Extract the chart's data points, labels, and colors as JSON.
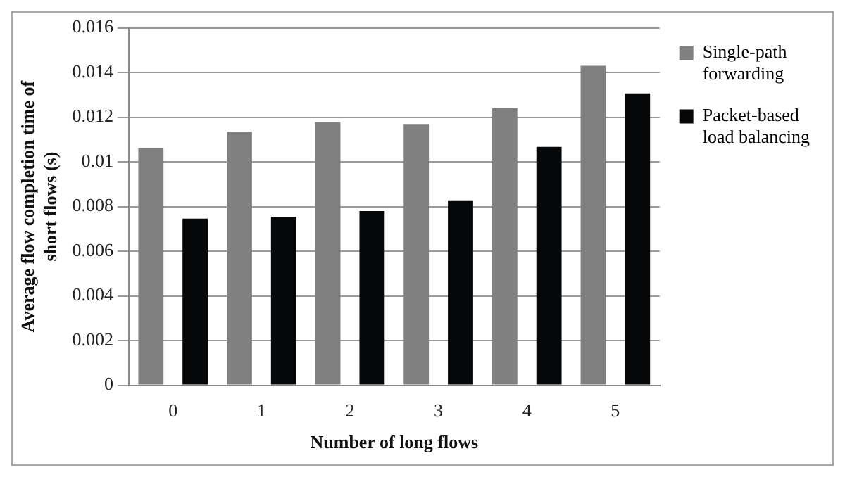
{
  "chart_data": {
    "type": "bar",
    "xlabel": "Number of long flows",
    "ylabel": "Average flow completion time of short flows (s)",
    "categories": [
      "0",
      "1",
      "2",
      "3",
      "4",
      "5"
    ],
    "series": [
      {
        "name": "Single-path forwarding",
        "color": "#808080",
        "values": [
          0.0106,
          0.01135,
          0.0118,
          0.0117,
          0.0124,
          0.0143
        ]
      },
      {
        "name": "Packet-based load balancing",
        "color": "#050708",
        "values": [
          0.00746,
          0.00754,
          0.0078,
          0.00828,
          0.01067,
          0.01307
        ]
      }
    ],
    "ylim": [
      0,
      0.016
    ],
    "yticks": [
      0,
      0.002,
      0.004,
      0.006,
      0.008,
      0.01,
      0.012,
      0.014,
      0.016
    ],
    "grid": "y",
    "legend": "right"
  }
}
